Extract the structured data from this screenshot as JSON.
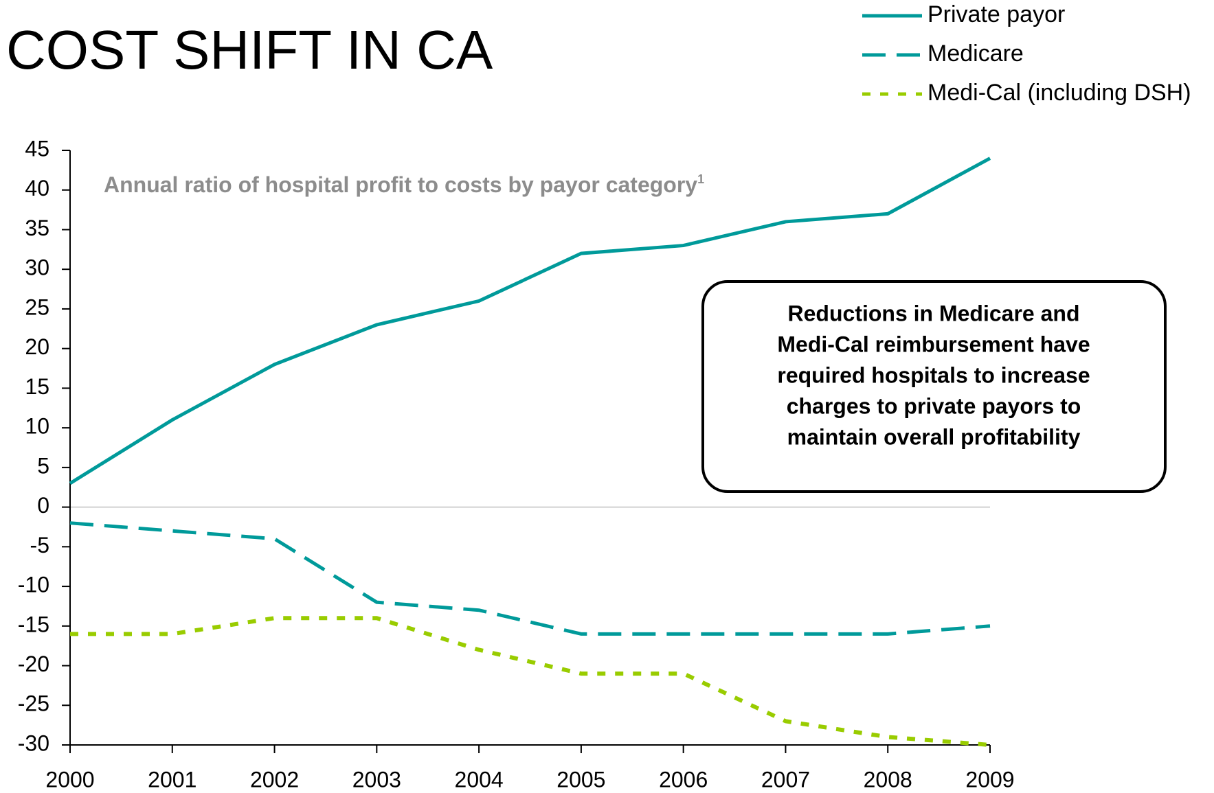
{
  "chart_data": {
    "type": "line",
    "title": "COST SHIFT IN CA",
    "subtitle": "Annual ratio of hospital profit to costs by payor category",
    "subtitle_note": "1",
    "callout": [
      "Reductions in Medicare and",
      "Medi-Cal reimbursement have",
      "required hospitals to increase",
      "charges to private payors to",
      "maintain overall profitability"
    ],
    "categories": [
      "2000",
      "2001",
      "2002",
      "2003",
      "2004",
      "2005",
      "2006",
      "2007",
      "2008",
      "2009"
    ],
    "series": [
      {
        "name": "Private payor",
        "color": "#009a9a",
        "dash": "solid",
        "values": [
          3,
          11,
          18,
          23,
          26,
          32,
          33,
          36,
          37,
          44
        ]
      },
      {
        "name": "Medicare",
        "color": "#009a9a",
        "dash": "dashed",
        "values": [
          -2,
          -3,
          -4,
          -12,
          -13,
          -16,
          -16,
          -16,
          -16,
          -15
        ]
      },
      {
        "name": "Medi-Cal (including DSH)",
        "color": "#99cc00",
        "dash": "dotted",
        "values": [
          -16,
          -16,
          -14,
          -14,
          -18,
          -21,
          -21,
          -27,
          -29,
          -30
        ]
      }
    ],
    "ylim": [
      -30,
      45
    ],
    "yticks": [
      -30,
      -25,
      -20,
      -15,
      -10,
      -5,
      0,
      5,
      10,
      15,
      20,
      25,
      30,
      35,
      40,
      45
    ],
    "legend": "top-right"
  }
}
